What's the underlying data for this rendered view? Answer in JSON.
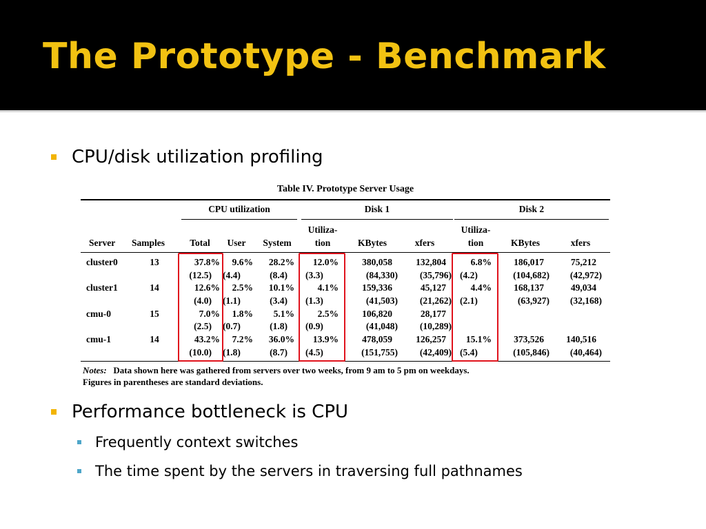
{
  "slide": {
    "title": "The Prototype - Benchmark",
    "bullets": [
      "CPU/disk utilization profiling",
      "Performance bottleneck is CPU"
    ],
    "sub_bullets": [
      "Frequently context switches",
      "The time spent by the servers in traversing full pathnames"
    ]
  },
  "table": {
    "caption": "Table IV.   Prototype Server Usage",
    "groups": {
      "cpu": "CPU utilization",
      "disk1": "Disk 1",
      "disk2": "Disk 2"
    },
    "headers": {
      "server": "Server",
      "samples": "Samples",
      "total": "Total",
      "user": "User",
      "system": "System",
      "util1a": "Utiliza-",
      "util1b": "tion",
      "kbytes1": "KBytes",
      "xfers1": "xfers",
      "util2a": "Utiliza-",
      "util2b": "tion",
      "kbytes2": "KBytes",
      "xfers2": "xfers"
    },
    "rows": [
      {
        "server": "cluster0",
        "samples": "13",
        "total": "37.8%",
        "user": "9.6%",
        "system": "28.2%",
        "util1": "12.0%",
        "kbytes1": "380,058",
        "xfers1": "132,804",
        "util2": "6.8%",
        "kbytes2": "186,017",
        "xfers2": "75,212",
        "sd_total": "(12.5)",
        "sd_user": "(4.4)",
        "sd_system": "(8.4)",
        "sd_util1": "(3.3)",
        "sd_kbytes1": "(84,330)",
        "sd_xfers1": "(35,796)",
        "sd_util2": "(4.2)",
        "sd_kbytes2": "(104,682)",
        "sd_xfers2": "(42,972)"
      },
      {
        "server": "cluster1",
        "samples": "14",
        "total": "12.6%",
        "user": "2.5%",
        "system": "10.1%",
        "util1": "4.1%",
        "kbytes1": "159,336",
        "xfers1": "45,127",
        "util2": "4.4%",
        "kbytes2": "168,137",
        "xfers2": "49,034",
        "sd_total": "(4.0)",
        "sd_user": "(1.1)",
        "sd_system": "(3.4)",
        "sd_util1": "(1.3)",
        "sd_kbytes1": "(41,503)",
        "sd_xfers1": "(21,262)",
        "sd_util2": "(2.1)",
        "sd_kbytes2": "(63,927)",
        "sd_xfers2": "(32,168)"
      },
      {
        "server": "cmu-0",
        "samples": "15",
        "total": "7.0%",
        "user": "1.8%",
        "system": "5.1%",
        "util1": "2.5%",
        "kbytes1": "106,820",
        "xfers1": "28,177",
        "util2": "",
        "kbytes2": "",
        "xfers2": "",
        "sd_total": "(2.5)",
        "sd_user": "(0.7)",
        "sd_system": "(1.8)",
        "sd_util1": "(0.9)",
        "sd_kbytes1": "(41,048)",
        "sd_xfers1": "(10,289)",
        "sd_util2": "",
        "sd_kbytes2": "",
        "sd_xfers2": ""
      },
      {
        "server": "cmu-1",
        "samples": "14",
        "total": "43.2%",
        "user": "7.2%",
        "system": "36.0%",
        "util1": "13.9%",
        "kbytes1": "478,059",
        "xfers1": "126,257",
        "util2": "15.1%",
        "kbytes2": "373,526",
        "xfers2": "140,516",
        "sd_total": "(10.0)",
        "sd_user": "(1.8)",
        "sd_system": "(8.7)",
        "sd_util1": "(4.5)",
        "sd_kbytes1": "(151,755)",
        "sd_xfers1": "(42,409)",
        "sd_util2": "(5.4)",
        "sd_kbytes2": "(105,846)",
        "sd_xfers2": "(40,464)"
      }
    ],
    "notes_label": "Notes:",
    "notes_line1": "Data shown here was gathered from servers over two weeks, from 9 am to 5 pm on weekdays.",
    "notes_line2": "Figures in parentheses are standard deviations."
  },
  "colors": {
    "title": "#f2c212",
    "bullet_l1": "#f2b400",
    "bullet_l2": "#4ea6c9",
    "highlight_box": "#e0121c"
  }
}
